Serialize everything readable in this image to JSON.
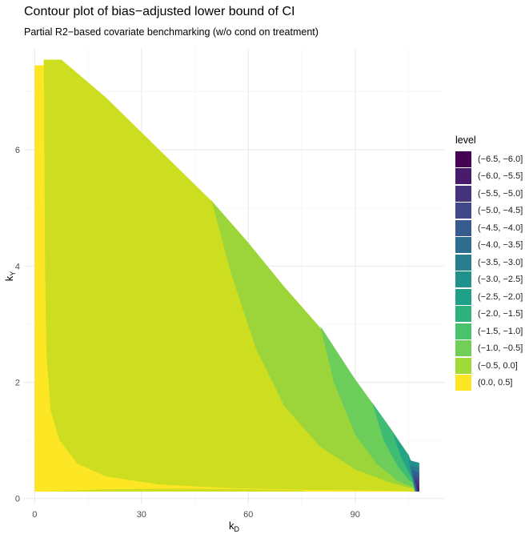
{
  "chart_data": {
    "type": "contour",
    "title": "Contour plot of bias−adjusted lower bound of CI",
    "subtitle": "Partial R2−based covariate benchmarking (w/o cond on treatment)",
    "xlabel": "k",
    "xlabel_sub": "D",
    "ylabel": "k",
    "ylabel_sub": "Y",
    "xlim": [
      -3,
      115
    ],
    "ylim": [
      -0.1,
      7.75
    ],
    "x_ticks": [
      0,
      30,
      60,
      90
    ],
    "y_ticks": [
      0,
      2,
      4,
      6
    ],
    "grid": true,
    "legend": {
      "title": "level",
      "position": "right",
      "levels": [
        {
          "label": "(−6.5, −6.0]",
          "color": "#440154"
        },
        {
          "label": "(−6.0, −5.5]",
          "color": "#481b6d"
        },
        {
          "label": "(−5.5, −5.0]",
          "color": "#46337e"
        },
        {
          "label": "(−5.0, −4.5]",
          "color": "#3f4889"
        },
        {
          "label": "(−4.5, −4.0]",
          "color": "#365c8d"
        },
        {
          "label": "(−4.0, −3.5]",
          "color": "#2e6e8e"
        },
        {
          "label": "(−3.5, −3.0]",
          "color": "#277f8e"
        },
        {
          "label": "(−3.0, −2.5]",
          "color": "#21918c"
        },
        {
          "label": "(−2.5, −2.0]",
          "color": "#1fa187"
        },
        {
          "label": "(−2.0, −1.5]",
          "color": "#2db27d"
        },
        {
          "label": "(−1.5, −1.0]",
          "color": "#4ac16d"
        },
        {
          "label": "(−1.0, −0.5]",
          "color": "#71cf57"
        },
        {
          "label": "(−0.5, 0.0]",
          "color": "#a0da39"
        },
        {
          "label": "(0.0, 0.5]",
          "color": "#fde725"
        }
      ]
    },
    "plot_colors": {
      "region_0_05": "#fde725",
      "region_m05_0": "#cddd1f",
      "region_m1_m05": "#9bd53a",
      "region_m15_m1": "#6ccd5a",
      "region_m2_m15": "#3fbc73",
      "region_deep": [
        "#25a386",
        "#21918c",
        "#2a7b8e",
        "#34608d",
        "#3f4889",
        "#46337e",
        "#481b6d"
      ]
    },
    "domain_boundary": [
      [
        2.5,
        7.55
      ],
      [
        7.5,
        7.55
      ],
      [
        20,
        6.9
      ],
      [
        30,
        6.3
      ],
      [
        40,
        5.7
      ],
      [
        50,
        5.1
      ],
      [
        60,
        4.4
      ],
      [
        70,
        3.65
      ],
      [
        80,
        2.95
      ],
      [
        90,
        2.05
      ],
      [
        100,
        1.2
      ],
      [
        105,
        0.75
      ],
      [
        107,
        0.45
      ],
      [
        108,
        0.3
      ],
      [
        108,
        0.12
      ],
      [
        0,
        0.12
      ],
      [
        0,
        7.45
      ],
      [
        2.5,
        7.45
      ]
    ],
    "contour_zero": [
      [
        2.6,
        7.55
      ],
      [
        2.7,
        6
      ],
      [
        2.9,
        4
      ],
      [
        3.3,
        2.5
      ],
      [
        4.5,
        1.5
      ],
      [
        7,
        1.0
      ],
      [
        12,
        0.6
      ],
      [
        20,
        0.38
      ],
      [
        35,
        0.24
      ],
      [
        55,
        0.18
      ],
      [
        75,
        0.15
      ],
      [
        95,
        0.14
      ],
      [
        108,
        0.12
      ]
    ],
    "contour_m05": [
      [
        49.6,
        5.15
      ],
      [
        55,
        3.9
      ],
      [
        62,
        2.6
      ],
      [
        70,
        1.6
      ],
      [
        80,
        0.9
      ],
      [
        90,
        0.5
      ],
      [
        100,
        0.27
      ],
      [
        108,
        0.14
      ]
    ],
    "contour_m1": [
      [
        80.2,
        2.97
      ],
      [
        84,
        2.0
      ],
      [
        90,
        1.1
      ],
      [
        96,
        0.6
      ],
      [
        102,
        0.3
      ],
      [
        108,
        0.15
      ]
    ],
    "contour_m15": [
      [
        94.8,
        1.65
      ],
      [
        98,
        1.0
      ],
      [
        102,
        0.55
      ],
      [
        105,
        0.33
      ],
      [
        108,
        0.17
      ]
    ],
    "contour_m2": [
      [
        100.6,
        1.12
      ],
      [
        103,
        0.7
      ],
      [
        105.5,
        0.4
      ],
      [
        108,
        0.2
      ]
    ],
    "lower_band": [
      [
        3,
        0.12
      ],
      [
        8,
        0.13
      ],
      [
        20,
        0.16
      ],
      [
        40,
        0.17
      ],
      [
        60,
        0.16
      ],
      [
        75,
        0.14
      ],
      [
        76,
        0.12
      ]
    ],
    "deep_strip": [
      [
        105.5,
        0.78
      ],
      [
        106.5,
        0.62
      ],
      [
        107.5,
        0.47
      ],
      [
        108,
        0.42
      ],
      [
        108,
        0.12
      ]
    ]
  }
}
